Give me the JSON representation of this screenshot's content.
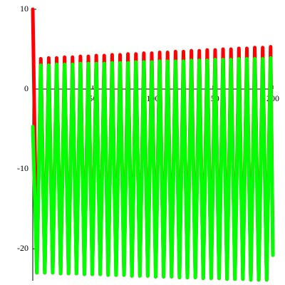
{
  "chart_data": {
    "type": "line",
    "x": [
      0,
      3.4,
      6.7,
      10,
      13.3,
      16.6,
      19.9,
      23.2,
      26.5,
      29.8,
      33.1,
      36.4,
      39.7,
      43,
      46.3,
      49.6,
      52.9,
      56.2,
      59.5,
      62.8,
      66.1,
      69.4,
      72.7,
      76,
      79.3,
      82.6,
      85.9,
      89.2,
      92.5,
      95.8,
      99.1,
      102.4,
      105.7,
      109,
      112.3,
      115.6,
      118.9,
      122.2,
      125.5,
      128.8,
      132.1,
      135.4,
      138.7,
      142,
      145.3,
      148.6,
      151.9,
      155.2,
      158.5,
      161.8,
      165.1,
      168.4,
      171.7,
      175,
      178.3,
      181.6,
      184.9,
      188.2,
      191.5,
      194.8,
      198.1,
      200
    ],
    "series": [
      {
        "name": "red",
        "color": "#ff0000",
        "values": [
          10,
          -23.0,
          3.8,
          -23.0,
          3.9,
          -23.0,
          3.9,
          -23.1,
          4.0,
          -23.1,
          4.0,
          -23.1,
          4.1,
          -23.2,
          4.1,
          -23.2,
          4.2,
          -23.2,
          4.2,
          -23.3,
          4.3,
          -23.3,
          4.3,
          -23.3,
          4.4,
          -23.4,
          4.4,
          -23.4,
          4.5,
          -23.4,
          4.5,
          -23.5,
          4.6,
          -23.5,
          4.6,
          -23.5,
          4.7,
          -23.6,
          4.7,
          -23.6,
          4.8,
          -23.6,
          4.8,
          -23.7,
          4.9,
          -23.7,
          4.9,
          -23.7,
          5.0,
          -23.8,
          5.0,
          -23.8,
          5.1,
          -23.8,
          5.1,
          -23.9,
          5.2,
          -23.9,
          5.2,
          -23.9,
          5.3,
          -20.8
        ]
      },
      {
        "name": "green",
        "color": "#00ff00",
        "values": [
          -4.7,
          -23.0,
          3.0,
          -23.0,
          3.0,
          -23.0,
          3.1,
          -23.1,
          3.1,
          -23.1,
          3.1,
          -23.1,
          3.2,
          -23.2,
          3.2,
          -23.2,
          3.2,
          -23.2,
          3.2,
          -23.3,
          3.3,
          -23.3,
          3.3,
          -23.3,
          3.3,
          -23.4,
          3.4,
          -23.4,
          3.4,
          -23.4,
          3.4,
          -23.5,
          3.5,
          -23.5,
          3.5,
          -23.5,
          3.5,
          -23.6,
          3.5,
          -23.6,
          3.6,
          -23.6,
          3.6,
          -23.7,
          3.6,
          -23.7,
          3.7,
          -23.7,
          3.7,
          -23.8,
          3.7,
          -23.8,
          3.8,
          -23.8,
          3.8,
          -23.9,
          3.8,
          -23.9,
          3.8,
          -23.9,
          3.9,
          -20.8
        ]
      }
    ],
    "xlim": [
      0,
      200
    ],
    "ylim": [
      -24,
      10
    ],
    "xticks": [
      50,
      100,
      150,
      200
    ],
    "yticks": [
      10,
      0,
      -10,
      -20
    ]
  }
}
